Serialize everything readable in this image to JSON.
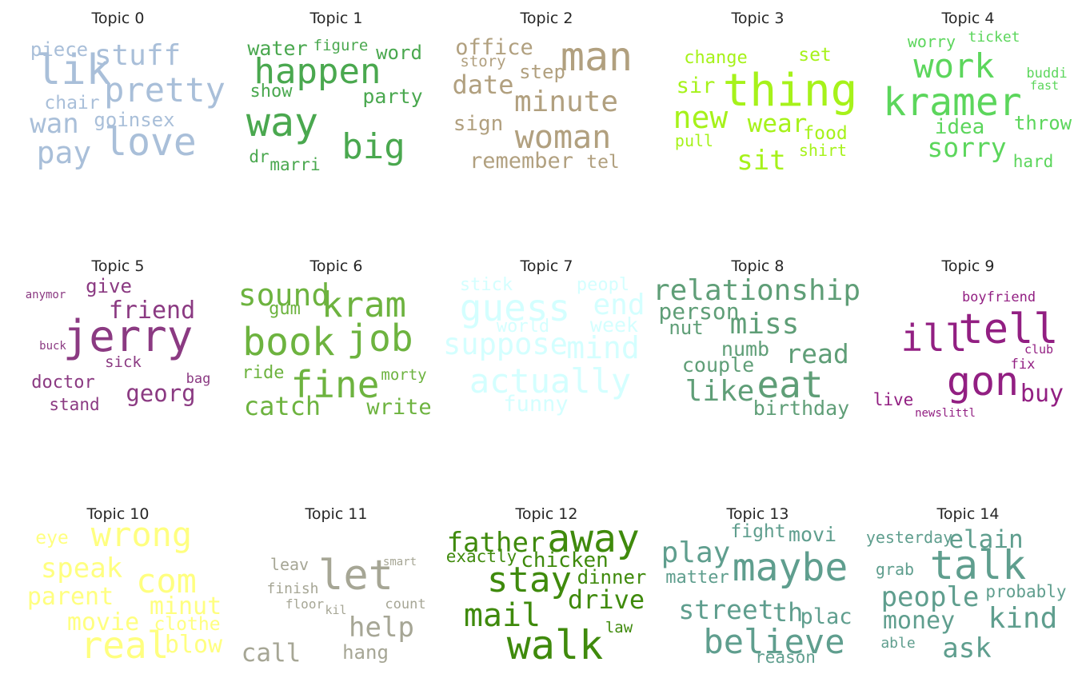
{
  "topics": [
    {
      "title": "Topic 0",
      "color": "#a9bfd9",
      "words": [
        "lik",
        "love",
        "pretty",
        "pay",
        "stuff",
        "wan",
        "piece",
        "chair",
        "goinsex"
      ]
    },
    {
      "title": "Topic 1",
      "color": "#4aa84f",
      "words": [
        "happen",
        "way",
        "big",
        "word",
        "party",
        "water",
        "figure",
        "show",
        "dr",
        "marri"
      ]
    },
    {
      "title": "Topic 2",
      "color": "#b1a07f",
      "words": [
        "man",
        "woman",
        "minute",
        "date",
        "office",
        "step",
        "story",
        "sign",
        "remember",
        "tel"
      ]
    },
    {
      "title": "Topic 3",
      "color": "#a6f21a",
      "words": [
        "thing",
        "new",
        "wear",
        "sit",
        "sir",
        "change",
        "set",
        "food",
        "shirt",
        "pull"
      ]
    },
    {
      "title": "Topic 4",
      "color": "#5cd65c",
      "words": [
        "kramer",
        "work",
        "sorry",
        "idea",
        "throw",
        "worry",
        "ticket",
        "buddi",
        "fast",
        "hard"
      ]
    },
    {
      "title": "Topic 5",
      "color": "#8b3a82",
      "words": [
        "jerry",
        "friend",
        "georg",
        "give",
        "doctor",
        "stand",
        "sick",
        "anymor",
        "buck",
        "bag"
      ]
    },
    {
      "title": "Topic 6",
      "color": "#6db33f",
      "words": [
        "book",
        "job",
        "kram",
        "fine",
        "sound",
        "catch",
        "write",
        "gum",
        "ride",
        "morty"
      ]
    },
    {
      "title": "Topic 7",
      "color": "#d4ffff",
      "words": [
        "guess",
        "actually",
        "suppose",
        "mind",
        "end",
        "week",
        "world",
        "stick",
        "peopl",
        "funny"
      ]
    },
    {
      "title": "Topic 8",
      "color": "#5f9e77",
      "words": [
        "eat",
        "relationship",
        "miss",
        "like",
        "read",
        "person",
        "couple",
        "numb",
        "nut",
        "birthday"
      ]
    },
    {
      "title": "Topic 9",
      "color": "#921f82",
      "words": [
        "tell",
        "ill",
        "gon",
        "buy",
        "boyfriend",
        "club",
        "fix",
        "live",
        "newslittl"
      ]
    },
    {
      "title": "Topic 10",
      "color": "#ffff80",
      "words": [
        "wrong",
        "com",
        "real",
        "speak",
        "parent",
        "movie",
        "minut",
        "clothe",
        "blow",
        "eye"
      ]
    },
    {
      "title": "Topic 11",
      "color": "#a6a695",
      "words": [
        "let",
        "help",
        "call",
        "hang",
        "leav",
        "finish",
        "floor",
        "kil",
        "count",
        "smart"
      ]
    },
    {
      "title": "Topic 12",
      "color": "#3f8a0c",
      "words": [
        "away",
        "walk",
        "stay",
        "mail",
        "father",
        "drive",
        "chicken",
        "dinner",
        "exactly",
        "law"
      ]
    },
    {
      "title": "Topic 13",
      "color": "#5f9e8e",
      "words": [
        "maybe",
        "believe",
        "play",
        "street",
        "th",
        "plac",
        "movi",
        "fight",
        "matter",
        "reason"
      ]
    },
    {
      "title": "Topic 14",
      "color": "#5f9e8e",
      "words": [
        "talk",
        "people",
        "kind",
        "money",
        "elain",
        "ask",
        "probably",
        "yesterday",
        "grab",
        "able"
      ]
    }
  ]
}
